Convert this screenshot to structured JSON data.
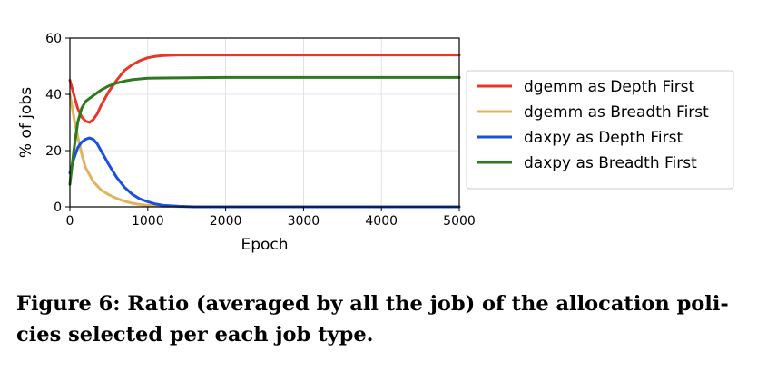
{
  "chart_data": {
    "type": "line",
    "xlabel": "Epoch",
    "ylabel": "% of jobs",
    "xlim": [
      0,
      5000
    ],
    "ylim": [
      0,
      60
    ],
    "xticks": [
      "0",
      "1000",
      "2000",
      "3000",
      "4000",
      "5000"
    ],
    "yticks": [
      "0",
      "20",
      "40",
      "60"
    ],
    "grid": true,
    "legend_position": "outside-right",
    "series": [
      {
        "name": "dgemm as Depth First",
        "color": "#e8362b",
        "x": [
          0,
          50,
          100,
          150,
          200,
          250,
          300,
          350,
          400,
          500,
          600,
          700,
          800,
          900,
          1000,
          1100,
          1200,
          1300,
          1400,
          1500,
          1700,
          2000,
          2500,
          3000,
          4000,
          5000
        ],
        "y": [
          45,
          40,
          35,
          32,
          30.5,
          30,
          31,
          33,
          36,
          41,
          45,
          48.5,
          50.5,
          52,
          53,
          53.5,
          53.8,
          53.9,
          54,
          54,
          54,
          54,
          54,
          54,
          54,
          54
        ]
      },
      {
        "name": "dgemm as Breadth First",
        "color": "#e0b45a",
        "x": [
          0,
          50,
          100,
          150,
          200,
          300,
          400,
          500,
          600,
          700,
          800,
          900,
          1000,
          1200,
          1400,
          1600,
          2000,
          3000,
          5000
        ],
        "y": [
          40,
          32,
          25,
          19,
          14,
          9,
          6,
          4.3,
          3,
          2,
          1.3,
          0.8,
          0.5,
          0.2,
          0.1,
          0,
          0,
          0,
          0
        ]
      },
      {
        "name": "daxpy as Depth First",
        "color": "#1a4fe0",
        "x": [
          0,
          50,
          100,
          150,
          200,
          250,
          300,
          350,
          400,
          500,
          600,
          700,
          800,
          900,
          1000,
          1100,
          1200,
          1400,
          1600,
          2000,
          3000,
          5000
        ],
        "y": [
          12,
          17,
          21,
          23,
          24,
          24.5,
          24,
          22.5,
          20,
          15,
          10.5,
          7,
          4.5,
          2.8,
          1.8,
          1,
          0.5,
          0.2,
          0,
          0,
          0,
          0
        ]
      },
      {
        "name": "daxpy as Breadth First",
        "color": "#2d7a1e",
        "x": [
          0,
          50,
          100,
          150,
          200,
          250,
          300,
          350,
          400,
          500,
          600,
          700,
          800,
          900,
          1000,
          1200,
          1500,
          2000,
          3000,
          5000
        ],
        "y": [
          8,
          20,
          30,
          35,
          37.5,
          38.5,
          39.5,
          40.5,
          41.5,
          43,
          44,
          44.7,
          45.2,
          45.5,
          45.7,
          45.8,
          45.9,
          46,
          46,
          46
        ]
      }
    ]
  },
  "caption": {
    "line1": "Figure 6: Ratio (averaged by all the job) of the allocation poli-",
    "line2": "cies selected per each job type."
  }
}
